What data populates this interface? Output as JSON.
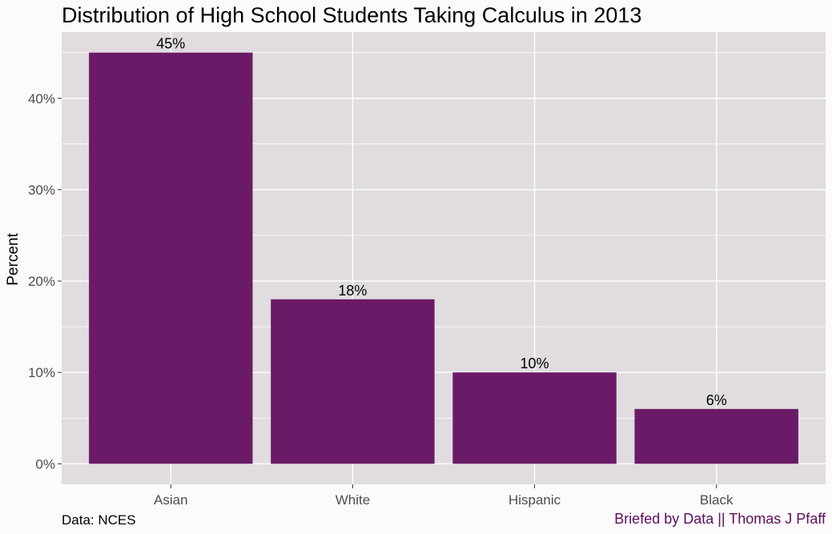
{
  "chart_data": {
    "type": "bar",
    "title": "Distribution of High School Students Taking Calculus in 2013",
    "xlabel": "",
    "ylabel": "Percent",
    "categories": [
      "Asian",
      "White",
      "Hispanic",
      "Black"
    ],
    "values": [
      45,
      18,
      10,
      6
    ],
    "data_labels": [
      "45%",
      "18%",
      "10%",
      "6%"
    ],
    "y_ticks": [
      0,
      10,
      20,
      30,
      40
    ],
    "y_tick_labels": [
      "0%",
      "10%",
      "20%",
      "30%",
      "40%"
    ],
    "ylim": [
      -2.25,
      47.25
    ],
    "grid": true,
    "legend": "none"
  },
  "caption": {
    "source": "Data: NCES",
    "credit": "Briefed by Data || Thomas J Pfaff"
  },
  "colors": {
    "bar": "#6a1a67",
    "panel": "#e0dce0",
    "grid": "#ffffff",
    "credit": "#5b0f5c",
    "tick_text": "#4d4d4d"
  }
}
